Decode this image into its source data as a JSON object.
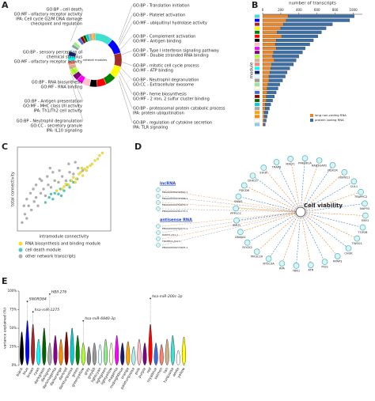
{
  "chart_data": [
    {
      "type": "pie",
      "panel_label": "A",
      "center_label": "network modules",
      "values": [
        12,
        10,
        9,
        8,
        7,
        6,
        5,
        5,
        4,
        4,
        4,
        3,
        3,
        3,
        3,
        3,
        2,
        2,
        2,
        2,
        2,
        2,
        2,
        2,
        1,
        1
      ],
      "colors": [
        "turquoise",
        "blue",
        "brown",
        "yellow",
        "green",
        "red",
        "black",
        "pink",
        "magenta",
        "purple",
        "greenyellow",
        "tan",
        "salmon",
        "cyan",
        "midnightblue",
        "lightcyan",
        "#999999",
        "lightgreen",
        "lightyellow",
        "royalblue",
        "darkred",
        "darkgreen",
        "darkturquoise",
        "darkgrey",
        "orange",
        "darkorange"
      ],
      "annotations_left": [
        [
          "GO:BP - cell death",
          "GO:MF - olfactory receptor activity",
          "IPA: Cell cycle G2/M DNA damage",
          "checkpoint and regulation"
        ],
        [
          "GO:BP - sensory perception of",
          "chemical stimulus",
          "GO:MF - olfactory receptor activity"
        ],
        [
          "GO:BP - RNA biosynthesis",
          "GO:MF - RNA binding"
        ],
        [
          "GO:BP - Antigen presentation",
          "GO:MF - MHC class I/II activity",
          "IPA: Th1/Th2 cell activity"
        ],
        [
          "GO:BP - Neutrophil degranulation",
          "GO:CC - secretory granule",
          "IPA: IL10 signaling"
        ]
      ],
      "annotations_right": [
        [
          "GO:BP - Translation initiation"
        ],
        [
          "GO:BP - Platelet activation"
        ],
        [
          "GO:MF - ubiquitinyl hydrolase activity"
        ],
        [
          "GO:BP - Complement activation",
          "GO:MF - Antigen binding"
        ],
        [
          "GO:BP - Type I interferon signaling pathway",
          "GO:MF - Double stranded RNA binding"
        ],
        [
          "GO:BP - mitotic cell cycle process",
          "GO:MF - ATP binding"
        ],
        [
          "GO:BP - Neutrophil degranulation",
          "GO:CC - Extracellular exosome"
        ],
        [
          "GO:BP - heme biosynthesis",
          "GO:MF - 2 iron, 2 sulfur cluster binding"
        ],
        [
          "GO:BP - proteasomal protein catabolic process",
          "IPA: protein ubiquitination"
        ],
        [
          "GO:BP - regulation of cytokine secretion",
          "IPA: TLR signaling"
        ]
      ]
    },
    {
      "type": "bar",
      "orientation": "horizontal",
      "stacked": true,
      "panel_label": "B",
      "xlabel": "number of transcripts",
      "ylabel": "module",
      "xlim": [
        0,
        1100
      ],
      "xticks": [
        0,
        200,
        400,
        600,
        800,
        1000
      ],
      "categories": [
        null,
        null,
        null,
        null,
        null,
        null,
        null,
        null,
        null,
        null,
        null,
        null,
        null,
        null,
        null,
        null,
        null,
        null,
        null,
        null,
        null,
        null,
        null,
        null,
        null,
        null,
        null,
        null
      ],
      "category_colors": [
        "turquoise",
        "blue",
        "brown",
        "yellow",
        "green",
        "red",
        "black",
        "pink",
        "magenta",
        "purple",
        "greenyellow",
        "tan",
        "salmon",
        "cyan",
        "midnightblue",
        "lightcyan",
        "#999999",
        "lightgreen",
        "lightyellow",
        "royalblue",
        "darkred",
        "darkgreen",
        "darkturquoise",
        "darkgrey",
        "orange",
        "darkorange",
        "white",
        "skyblue"
      ],
      "series": [
        {
          "name": "long non-coding RNA",
          "color": "#e8862a",
          "values": [
            280,
            260,
            230,
            200,
            160,
            210,
            150,
            140,
            150,
            120,
            110,
            130,
            100,
            90,
            80,
            70,
            70,
            60,
            50,
            50,
            40,
            40,
            30,
            30,
            20,
            20,
            15,
            10
          ]
        },
        {
          "name": "protein coding RNA",
          "color": "#3a6ea5",
          "values": [
            730,
            700,
            540,
            500,
            490,
            400,
            410,
            380,
            320,
            320,
            290,
            240,
            240,
            210,
            190,
            180,
            150,
            130,
            120,
            100,
            90,
            70,
            60,
            45,
            40,
            30,
            25,
            20
          ]
        }
      ],
      "legend": "bottom-right"
    },
    {
      "type": "scatter",
      "panel_label": "C",
      "xlabel": "intramodule connectivity",
      "ylabel": "total connectivity",
      "xlim": [
        0,
        1
      ],
      "ylim": [
        0,
        1
      ],
      "series": [
        {
          "name": "RNA biosynthesis and binding module",
          "color": "#f0e030",
          "x": [
            0.42,
            0.48,
            0.52,
            0.55,
            0.58,
            0.6,
            0.63,
            0.66,
            0.68,
            0.7,
            0.72,
            0.75,
            0.78,
            0.8,
            0.83,
            0.86,
            0.88,
            0.91,
            0.5,
            0.62,
            0.74,
            0.69
          ],
          "y": [
            0.48,
            0.5,
            0.56,
            0.55,
            0.6,
            0.64,
            0.62,
            0.68,
            0.7,
            0.66,
            0.74,
            0.76,
            0.78,
            0.8,
            0.84,
            0.86,
            0.9,
            0.93,
            0.53,
            0.58,
            0.72,
            0.75
          ]
        },
        {
          "name": "cell death module",
          "color": "#4fc9c0",
          "x": [
            0.3,
            0.34,
            0.38,
            0.4,
            0.44,
            0.46,
            0.5,
            0.53,
            0.56,
            0.6,
            0.36,
            0.47,
            0.57,
            0.64
          ],
          "y": [
            0.34,
            0.4,
            0.38,
            0.45,
            0.44,
            0.5,
            0.48,
            0.55,
            0.52,
            0.58,
            0.44,
            0.42,
            0.6,
            0.62
          ]
        },
        {
          "name": "other network transcripts",
          "color": "#b0b0b0",
          "x": [
            0.05,
            0.08,
            0.1,
            0.12,
            0.15,
            0.18,
            0.2,
            0.22,
            0.25,
            0.28,
            0.3,
            0.33,
            0.36,
            0.4,
            0.44,
            0.48,
            0.52,
            0.56,
            0.6,
            0.65,
            0.7,
            0.1,
            0.14,
            0.2,
            0.26,
            0.32,
            0.38,
            0.45,
            0.55,
            0.62,
            0.07,
            0.17,
            0.24,
            0.35
          ],
          "y": [
            0.1,
            0.2,
            0.15,
            0.3,
            0.25,
            0.35,
            0.4,
            0.3,
            0.45,
            0.5,
            0.42,
            0.55,
            0.52,
            0.6,
            0.58,
            0.65,
            0.6,
            0.7,
            0.68,
            0.75,
            0.72,
            0.38,
            0.45,
            0.55,
            0.6,
            0.65,
            0.7,
            0.72,
            0.8,
            0.82,
            0.3,
            0.5,
            0.62,
            0.75
          ]
        }
      ]
    },
    {
      "type": "violin",
      "panel_label": "E",
      "ylabel": "variance explained (%)",
      "ylim": [
        0,
        100
      ],
      "yticks": [
        {
          "value": 0,
          "label": "0%"
        },
        {
          "value": 25,
          "label": "25%"
        },
        {
          "value": 50,
          "label": "50%"
        },
        {
          "value": 75,
          "label": "75%"
        },
        {
          "value": 100,
          "label": "100%"
        }
      ],
      "categories": [
        "black",
        "blue",
        "brown",
        "cyan",
        "darkgreen",
        "darkgrey",
        "darkmagenta",
        "darkorange",
        "darkred",
        "darkturquoise",
        "green",
        "greenyellow",
        "grey",
        "grey60",
        "lightcyan",
        "lightgreen",
        "lightyellow",
        "magenta",
        "midnightblue",
        "orange",
        "paleturquoise",
        "pink",
        "purple",
        "red",
        "royalblue",
        "salmon",
        "tan",
        "turquoise",
        "white",
        "yellow"
      ],
      "colors": [
        "black",
        "blue",
        "brown",
        "cyan",
        "darkgreen",
        "darkgrey",
        "darkmagenta",
        "darkorange",
        "darkred",
        "darkturquoise",
        "green",
        "greenyellow",
        "grey",
        "#999999",
        "lightcyan",
        "lightgreen",
        "lightyellow",
        "magenta",
        "midnightblue",
        "orange",
        "paleturquoise",
        "pink",
        "purple",
        "red",
        "royalblue",
        "salmon",
        "tan",
        "turquoise",
        "white",
        "yellow"
      ],
      "medians": [
        6,
        8,
        7,
        5,
        6,
        5,
        6,
        5,
        7,
        6,
        7,
        5,
        4,
        5,
        5,
        6,
        5,
        6,
        5,
        5,
        4,
        6,
        5,
        7,
        5,
        5,
        6,
        7,
        4,
        6
      ],
      "maxima": [
        45,
        60,
        55,
        35,
        50,
        30,
        40,
        35,
        45,
        50,
        40,
        30,
        25,
        30,
        28,
        35,
        30,
        40,
        30,
        32,
        25,
        35,
        30,
        55,
        30,
        28,
        35,
        40,
        20,
        38
      ],
      "outliers": [
        {
          "category": "blue",
          "value": 86,
          "label": "SNORD84"
        },
        {
          "category": "brown",
          "value": 72,
          "label": "hsa-miR-1275"
        },
        {
          "category": "darkgrey",
          "value": 96,
          "label": "HBII-276"
        },
        {
          "category": "greenyellow",
          "value": 60,
          "label": "hsa-miR-6840-3p"
        },
        {
          "category": "red",
          "value": 90,
          "label": "hsa-miR-200c-3p"
        }
      ]
    }
  ],
  "network": {
    "panel_label": "D",
    "hub": "Cell viability",
    "groups": [
      {
        "title": "lncRNA",
        "items": [
          "ENSG00000230590.1",
          "ENSG00000237298.1",
          "ENSG00000259976.1",
          "ENSG00000261175.1"
        ]
      },
      {
        "title": "antisense RNA",
        "items": [
          "ENSG00000254777.1",
          "DANT1-AS1.1",
          "TRAPPC2-AS1.1",
          "ENSG00000272405.1"
        ]
      }
    ],
    "nodes": [
      "MALT1",
      "PRKAR1A",
      "RAB3GAP2",
      "DDX3X",
      "HSPB11",
      "CUL1",
      "TRAPPC2",
      "NUP93",
      "ENY2",
      "TOP2B",
      "TWSG1",
      "CHUK",
      "RPAP3",
      "PIGS",
      "ATR",
      "TBK1",
      "RPA",
      "NT5C3A",
      "PIK3C2A",
      "ROCK2",
      "DNAJA1",
      "SMU1",
      "PPP1CC",
      "SNW1",
      "PDCD6",
      "DHX15",
      "EIF3F",
      "TRAF6"
    ]
  }
}
